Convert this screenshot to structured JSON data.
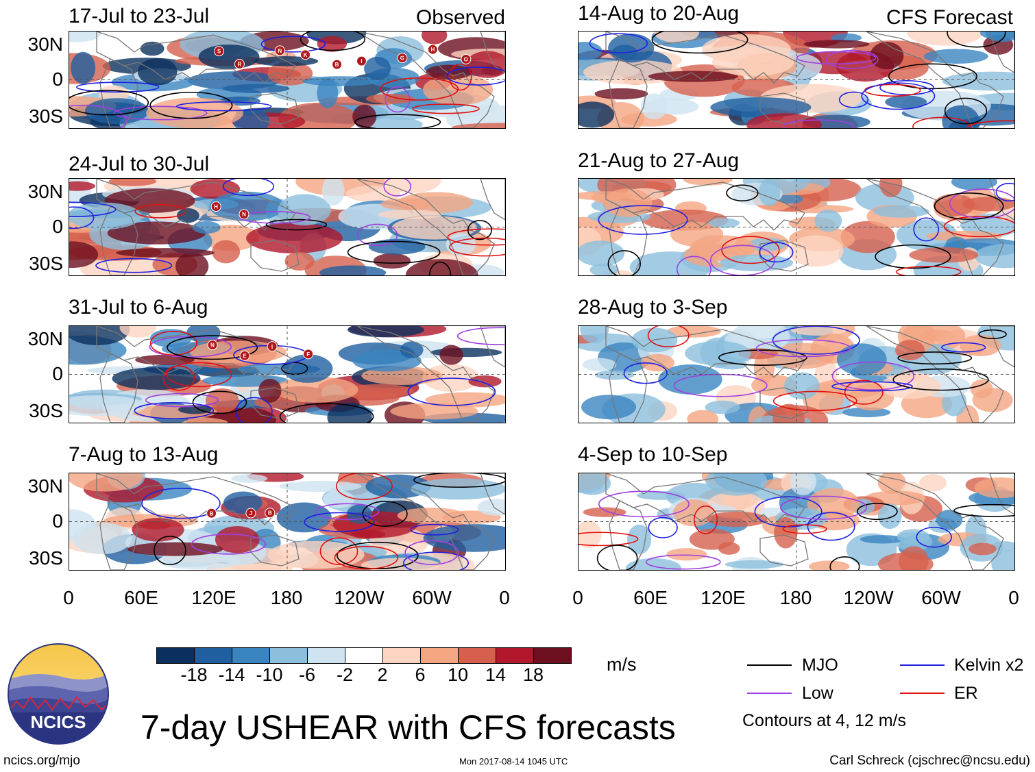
{
  "observed_label": "Observed",
  "forecast_label": "CFS Forecast",
  "panels_left": [
    {
      "title": "17-Jul to 23-Jul"
    },
    {
      "title": "24-Jul to 30-Jul"
    },
    {
      "title": "31-Jul to 6-Aug"
    },
    {
      "title": "7-Aug to 13-Aug"
    }
  ],
  "panels_right": [
    {
      "title": "14-Aug to 20-Aug"
    },
    {
      "title": "21-Aug to 27-Aug"
    },
    {
      "title": "28-Aug to 3-Sep"
    },
    {
      "title": "4-Sep to 10-Sep"
    }
  ],
  "lat_labels": [
    "30N",
    "0",
    "30S"
  ],
  "lon_labels": [
    "0",
    "60E",
    "120E",
    "180",
    "120W",
    "60W",
    "0"
  ],
  "colorbar": {
    "colors": [
      "#0b2f5e",
      "#1f5fa0",
      "#3a85c0",
      "#8cbfdd",
      "#cfe4f0",
      "#ffffff",
      "#fdd5c1",
      "#f4a582",
      "#d6604d",
      "#b2182b",
      "#6d0f1f"
    ],
    "labels": [
      "-18",
      "-14",
      "-10",
      "-6",
      "-2",
      "2",
      "6",
      "10",
      "14",
      "18"
    ],
    "units": "m/s"
  },
  "legend": [
    {
      "label": "MJO",
      "color": "#000000"
    },
    {
      "label": "Kelvin x2",
      "color": "#1f1fe0"
    },
    {
      "label": "Low",
      "color": "#a040e0"
    },
    {
      "label": "ER",
      "color": "#e01010"
    }
  ],
  "contour_note": "Contours at 4, 12 m/s",
  "main_title": "7-day USHEAR with CFS forecasts",
  "logo_text": "NCICS",
  "footer": {
    "url": "ncics.org/mjo",
    "timestamp": "Mon 2017-08-14 1045 UTC",
    "credit": "Carl Schreck (cjschrec@ncsu.edu)"
  },
  "storm_markers": [
    [
      "S",
      "R",
      "N",
      "K",
      "B",
      "I",
      "G",
      "H",
      "O"
    ],
    [
      "H",
      "N"
    ],
    [
      "N",
      "E",
      "I",
      "F"
    ],
    [
      "B",
      "J",
      "B"
    ]
  ]
}
